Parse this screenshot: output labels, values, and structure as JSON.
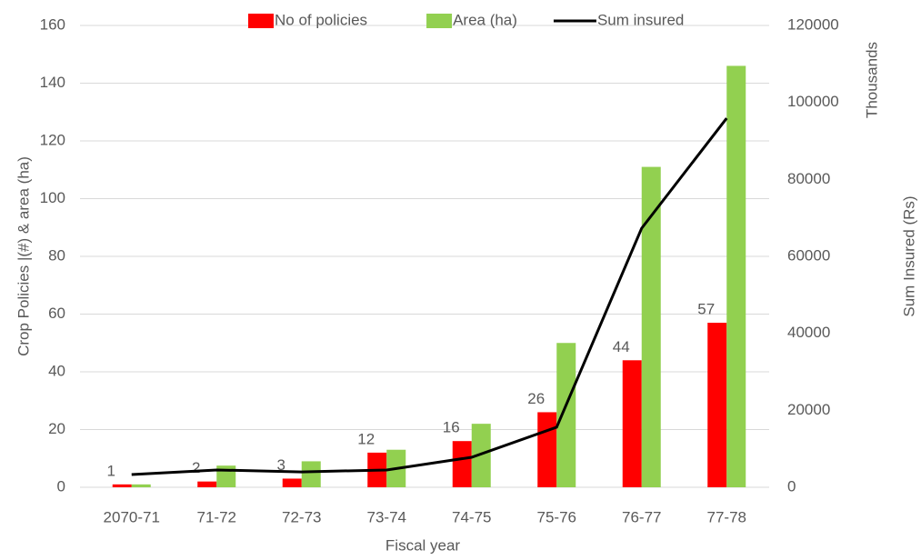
{
  "chart_data": {
    "type": "bar-line",
    "categories": [
      "2070-71",
      "71-72",
      "72-73",
      "73-74",
      "74-75",
      "75-76",
      "76-77",
      "77-78"
    ],
    "series": [
      {
        "name": "No of policies",
        "color": "#ff0000",
        "type": "bar",
        "values": [
          1,
          2,
          3,
          12,
          16,
          26,
          44,
          57
        ]
      },
      {
        "name": "Area (ha)",
        "color": "#92d050",
        "type": "bar",
        "values": [
          1,
          7.5,
          9,
          13,
          22,
          50,
          111,
          146
        ]
      },
      {
        "name": "Sum insured",
        "color": "#000000",
        "type": "line",
        "axis": "y2",
        "values": [
          3300,
          4500,
          4000,
          4500,
          7800,
          15600,
          67300,
          95900
        ]
      }
    ],
    "ylabel": "Crop Policies |(#) & area (ha)",
    "y2label": "Sum Insured (Rs)",
    "y2unit": "Thousands",
    "xlabel": "Fiscal year",
    "ylim": [
      0,
      160
    ],
    "yticks": [
      0,
      20,
      40,
      60,
      80,
      100,
      120,
      140,
      160
    ],
    "y2lim": [
      0,
      120000
    ],
    "y2ticks": [
      0,
      20000,
      40000,
      60000,
      80000,
      100000,
      120000
    ],
    "grid": true,
    "legend": "top",
    "data_labels_series": 0
  }
}
